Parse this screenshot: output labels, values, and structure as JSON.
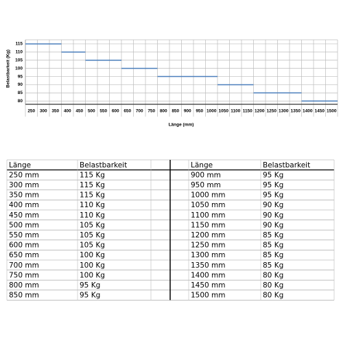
{
  "chart_data": {
    "type": "step",
    "ylabel": "Belastbarkeit (Kg)",
    "xlabel": "Länge (mm)",
    "categories": [
      "250",
      "300",
      "350",
      "400",
      "450",
      "500",
      "550",
      "600",
      "650",
      "700",
      "750",
      "800",
      "850",
      "900",
      "950",
      "1000",
      "1050",
      "1100",
      "1150",
      "1200",
      "1250",
      "1300",
      "1350",
      "1400",
      "1450",
      "1500"
    ],
    "values": [
      115,
      115,
      115,
      110,
      110,
      105,
      105,
      105,
      100,
      100,
      100,
      95,
      95,
      95,
      95,
      95,
      90,
      90,
      90,
      85,
      85,
      85,
      85,
      80,
      80,
      80
    ],
    "color": "#4a7ebb",
    "ylim": [
      78,
      117.5
    ],
    "yticks": [
      80,
      85,
      90,
      95,
      100,
      105,
      110,
      115
    ],
    "grid": true
  },
  "table": {
    "columns": [
      "Länge",
      "Belastbarkeit",
      "Länge",
      "Belastbarkeit"
    ],
    "rows": [
      [
        "250 mm",
        "115 Kg",
        "900 mm",
        "95 Kg"
      ],
      [
        "300 mm",
        "115 Kg",
        "950 mm",
        "95 Kg"
      ],
      [
        "350 mm",
        "115 Kg",
        "1000 mm",
        "95 Kg"
      ],
      [
        "400 mm",
        "110 Kg",
        "1050 mm",
        "90 Kg"
      ],
      [
        "450 mm",
        "110 Kg",
        "1100 mm",
        "90 Kg"
      ],
      [
        "500 mm",
        "105 Kg",
        "1150 mm",
        "90 Kg"
      ],
      [
        "550 mm",
        "105 Kg",
        "1200 mm",
        "85 Kg"
      ],
      [
        "600 mm",
        "105 Kg",
        "1250 mm",
        "85 Kg"
      ],
      [
        "650 mm",
        "100 Kg",
        "1300 mm",
        "85 Kg"
      ],
      [
        "700 mm",
        "100 Kg",
        "1350 mm",
        "85 Kg"
      ],
      [
        "750 mm",
        "100 Kg",
        "1400 mm",
        "80 Kg"
      ],
      [
        "800 mm",
        "95 Kg",
        "1450 mm",
        "80 Kg"
      ],
      [
        "850 mm",
        "95 Kg",
        "1500 mm",
        "80 Kg"
      ]
    ]
  }
}
